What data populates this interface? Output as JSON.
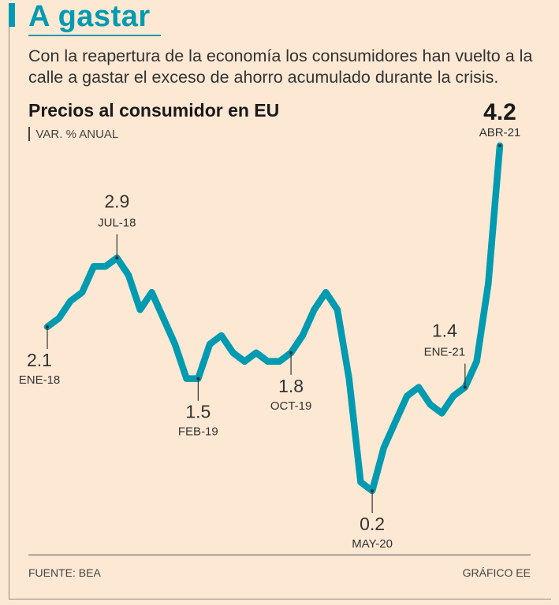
{
  "headline": "A gastar",
  "dek": "Con la reapertura de la economía los consumidores han vuelto a la calle a gastar el exceso de ahorro acumulado durante la crisis.",
  "colors": {
    "accent": "#009bb0",
    "background": "#fde8d4",
    "text": "#333333"
  },
  "chart_data": {
    "type": "line",
    "title": "Precios al consumidor en EU",
    "ylabel": "VAR. % ANUAL",
    "xlabel": "",
    "x": [
      "ene-18",
      "feb-18",
      "mar-18",
      "abr-18",
      "may-18",
      "jun-18",
      "jul-18",
      "ago-18",
      "sep-18",
      "oct-18",
      "nov-18",
      "dic-18",
      "ene-19",
      "feb-19",
      "mar-19",
      "abr-19",
      "may-19",
      "jun-19",
      "jul-19",
      "ago-19",
      "sep-19",
      "oct-19",
      "nov-19",
      "dic-19",
      "ene-20",
      "feb-20",
      "mar-20",
      "abr-20",
      "may-20",
      "jun-20",
      "jul-20",
      "ago-20",
      "sep-20",
      "oct-20",
      "nov-20",
      "dic-20",
      "ene-21",
      "feb-21",
      "mar-21",
      "abr-21"
    ],
    "series": [
      {
        "values": [
          2.1,
          2.2,
          2.4,
          2.5,
          2.8,
          2.8,
          2.9,
          2.7,
          2.3,
          2.5,
          2.2,
          1.9,
          1.5,
          1.5,
          1.9,
          2.0,
          1.8,
          1.7,
          1.8,
          1.7,
          1.7,
          1.8,
          2.0,
          2.3,
          2.5,
          2.3,
          1.5,
          0.3,
          0.2,
          0.7,
          1.0,
          1.3,
          1.4,
          1.2,
          1.1,
          1.3,
          1.4,
          1.7,
          2.6,
          4.2
        ]
      }
    ],
    "ylim": [
      0,
      4.4
    ],
    "grid": false,
    "legend": "none",
    "annotations": [
      {
        "index": 0,
        "value": "2.1",
        "label": "ENE-18",
        "side": "below"
      },
      {
        "index": 6,
        "value": "2.9",
        "label": "JUL-18",
        "side": "above"
      },
      {
        "index": 13,
        "value": "1.5",
        "label": "FEB-19",
        "side": "below"
      },
      {
        "index": 21,
        "value": "1.8",
        "label": "OCT-19",
        "side": "below"
      },
      {
        "index": 28,
        "value": "0.2",
        "label": "MAY-20",
        "side": "below"
      },
      {
        "index": 36,
        "value": "1.4",
        "label": "ENE-21",
        "side": "above"
      },
      {
        "index": 39,
        "value": "4.2",
        "label": "ABR-21",
        "side": "above-bold"
      }
    ]
  },
  "footer": {
    "source": "FUENTE: BEA",
    "credit": "GRÁFICO EE"
  }
}
